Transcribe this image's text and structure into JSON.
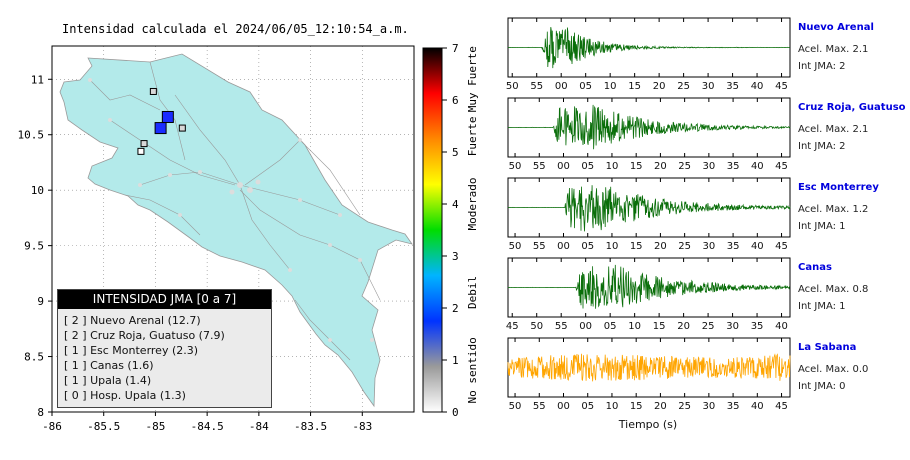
{
  "map": {
    "title": "Intensidad calculada el 2024/06/05_12:10:54_a.m.",
    "x_ticks": [
      "-86",
      "-85.5",
      "-85",
      "-84.5",
      "-84",
      "-83.5",
      "-83"
    ],
    "y_ticks": [
      "11",
      "10.5",
      "10",
      "9.5",
      "9",
      "8.5",
      "8"
    ],
    "land_color": "#b3eaea",
    "markers": [
      {
        "name": "Nuevo Arenal",
        "lon": -84.88,
        "lat": 10.66,
        "intensity": 2
      },
      {
        "name": "Cruz Roja, Guatuso",
        "lon": -84.95,
        "lat": 10.56,
        "intensity": 2
      },
      {
        "name": "Esc Monterrey",
        "lon": -84.74,
        "lat": 10.56,
        "intensity": 1
      },
      {
        "name": "Canas",
        "lon": -85.11,
        "lat": 10.42,
        "intensity": 1
      },
      {
        "name": "Upala",
        "lon": -85.02,
        "lat": 10.89,
        "intensity": 1
      },
      {
        "name": "Hosp. Upala",
        "lon": -85.14,
        "lat": 10.35,
        "intensity": 0
      }
    ]
  },
  "legend": {
    "title": "INTENSIDAD JMA [0 a 7]",
    "items": [
      "[ 2 ]  Nuevo Arenal (12.7)",
      "[ 2 ]  Cruz Roja, Guatuso (7.9)",
      "[ 1 ]  Esc Monterrey (2.3)",
      "[ 1 ]  Canas (1.6)",
      "[ 1 ]  Upala (1.4)",
      "[ 0 ]  Hosp. Upala (1.3)"
    ]
  },
  "colorbar": {
    "ticks": [
      "0",
      "1",
      "2",
      "3",
      "4",
      "5",
      "6",
      "7"
    ],
    "range": [
      0,
      7
    ],
    "labels": [
      "No sentido",
      "Debil",
      "Moderado",
      "Fuerte",
      "Muy Fuerte"
    ],
    "colors": [
      "#ffffff",
      "#9a9a9a",
      "#0033ff",
      "#00b4ff",
      "#00dd00",
      "#ffff00",
      "#ff8800",
      "#ff0000",
      "#000000"
    ]
  },
  "seismograms": {
    "xlabel": "Tiempo (s)",
    "stations": [
      {
        "name": "Nuevo Arenal",
        "acel": "Acel. Max. 2.1",
        "int": "Int JMA: 2",
        "color": "#0a6e0a",
        "ticks": [
          "50",
          "55",
          "00",
          "05",
          "10",
          "15",
          "20",
          "25",
          "30",
          "35",
          "40",
          "45"
        ],
        "first_tick": 0.015,
        "onset": 0.12,
        "peak": 0.2,
        "decay": 0.1
      },
      {
        "name": "Cruz Roja, Guatuso",
        "acel": "Acel. Max. 2.1",
        "int": "Int JMA: 2",
        "color": "#0a6e0a",
        "ticks": [
          "50",
          "55",
          "00",
          "05",
          "10",
          "15",
          "20",
          "25",
          "30",
          "35",
          "40",
          "45"
        ],
        "first_tick": 0.025,
        "onset": 0.16,
        "peak": 0.3,
        "decay": 0.2
      },
      {
        "name": "Esc Monterrey",
        "acel": "Acel. Max. 1.2",
        "int": "Int JMA: 1",
        "color": "#0a6e0a",
        "ticks": [
          "50",
          "55",
          "00",
          "05",
          "10",
          "15",
          "20",
          "25",
          "30",
          "35",
          "40",
          "45"
        ],
        "first_tick": 0.025,
        "onset": 0.2,
        "peak": 0.34,
        "decay": 0.22
      },
      {
        "name": "Canas",
        "acel": "Acel. Max. 0.8",
        "int": "Int JMA: 1",
        "color": "#0a6e0a",
        "ticks": [
          "45",
          "50",
          "55",
          "00",
          "05",
          "10",
          "15",
          "20",
          "25",
          "30",
          "35",
          "40"
        ],
        "first_tick": 0.015,
        "onset": 0.24,
        "peak": 0.38,
        "decay": 0.22
      },
      {
        "name": "La Sabana",
        "acel": "Acel. Max. 0.0",
        "int": "Int JMA: 0",
        "color": "#ffa500",
        "ticks": [
          "50",
          "55",
          "00",
          "05",
          "10",
          "15",
          "20",
          "25",
          "30",
          "35",
          "40",
          "45"
        ],
        "first_tick": 0.025,
        "onset": 0.0,
        "peak": 0.8,
        "decay": 0.0
      }
    ]
  }
}
